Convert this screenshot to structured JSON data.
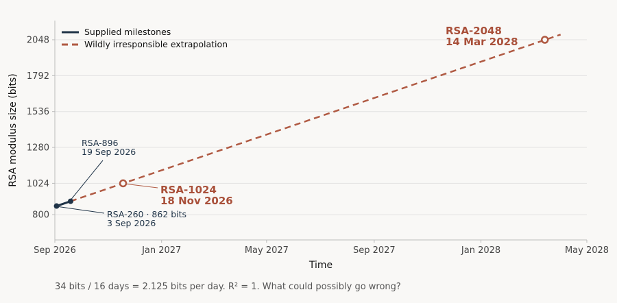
{
  "chart_data": {
    "type": "line",
    "xlabel": "Time",
    "ylabel": "RSA modulus size (bits)",
    "x_ticks": [
      "Sep 2026",
      "Jan 2027",
      "May 2027",
      "Sep 2027",
      "Jan 2028",
      "May 2028"
    ],
    "x_tick_dates": [
      "2026-09-01",
      "2027-01-01",
      "2027-05-01",
      "2027-09-01",
      "2028-01-01",
      "2028-05-01"
    ],
    "y_ticks": [
      800,
      1024,
      1280,
      1536,
      1792,
      2048
    ],
    "xlim": [
      "2026-09-01",
      "2028-05-01"
    ],
    "ylim": [
      620,
      2185
    ],
    "grid": "horizontal",
    "legend": "top-left",
    "series": [
      {
        "name": "Supplied milestones",
        "style": "solid",
        "color": "#1f3347",
        "points": [
          {
            "x": "2026-09-03",
            "y": 862
          },
          {
            "x": "2026-09-19",
            "y": 896
          }
        ]
      },
      {
        "name": "Wildly irresponsible extrapolation",
        "style": "dashed",
        "color": "#b05a43",
        "points": [
          {
            "x": "2026-09-19",
            "y": 896
          },
          {
            "x": "2028-04-01",
            "y": 2085
          }
        ]
      }
    ],
    "milestones": [
      {
        "x": "2026-11-18",
        "y": 1024,
        "label": "RSA-1024",
        "date": "18 Nov 2026"
      },
      {
        "x": "2028-03-14",
        "y": 2048,
        "label": "RSA-2048",
        "date": "14 Mar 2028"
      }
    ],
    "annotations": [
      {
        "x": "2026-09-03",
        "y": 862,
        "line1": "RSA-260 · 862 bits",
        "line2": "3 Sep 2026"
      },
      {
        "x": "2026-09-19",
        "y": 896,
        "line1": "RSA-896",
        "line2": "19 Sep 2026"
      }
    ],
    "caption": "34 bits / 16 days = 2.125 bits per day.  R² = 1.  What could possibly go wrong?"
  }
}
